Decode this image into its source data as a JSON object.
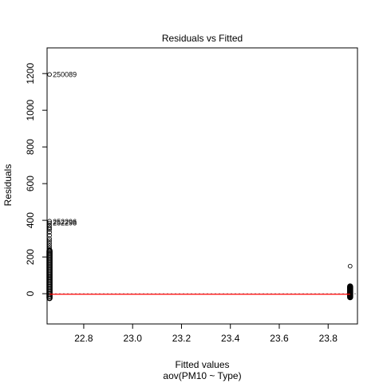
{
  "chart_data": {
    "type": "scatter",
    "title": "Residuals vs Fitted",
    "xlabel": "Fitted values",
    "xsublabel": "aov(PM10 ~ Type)",
    "ylabel": "Residuals",
    "xlim": [
      22.65,
      23.92
    ],
    "ylim": [
      -165,
      1340
    ],
    "xticks": [
      22.8,
      23.0,
      23.2,
      23.4,
      23.6,
      23.8
    ],
    "xtick_labels": [
      "22.8",
      "23.0",
      "23.2",
      "23.4",
      "23.6",
      "23.8"
    ],
    "yticks": [
      0,
      200,
      400,
      600,
      800,
      1000,
      1200
    ],
    "ytick_labels": [
      "0",
      "200",
      "400",
      "600",
      "800",
      "1000",
      "1200"
    ],
    "reference_line": {
      "y": 0,
      "color": "#808080"
    },
    "smoother": {
      "color": "#ff0000",
      "points": [
        [
          22.66,
          -3
        ],
        [
          23.89,
          -3
        ]
      ]
    },
    "groups": [
      {
        "x": 22.66,
        "dense_range": [
          -25,
          235
        ],
        "points": [
          240,
          250,
          262,
          275,
          288,
          300,
          318,
          335,
          350,
          360,
          372,
          385,
          395,
          1195
        ]
      },
      {
        "x": 23.89,
        "dense_range": [
          -20,
          40
        ],
        "points": [
          150
        ]
      }
    ],
    "annotations": [
      {
        "x": 22.66,
        "y": 1195,
        "text": "250089"
      },
      {
        "x": 22.66,
        "y": 392,
        "text": "252296"
      },
      {
        "x": 22.66,
        "y": 385,
        "text": "252298"
      }
    ]
  }
}
